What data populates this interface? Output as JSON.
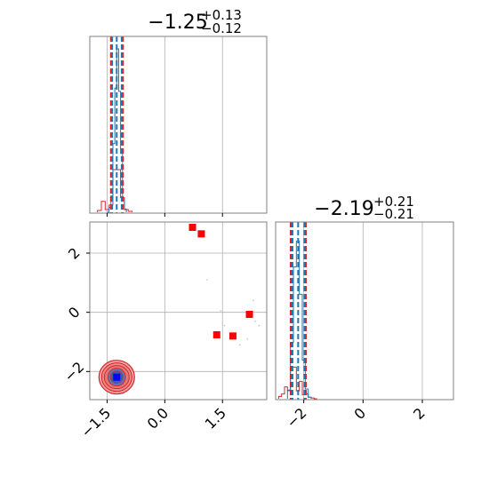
{
  "chart_data": {
    "type": "corner",
    "colors": {
      "blue": "#1f77b4",
      "red": "#d62728",
      "marker_red": "#ff0000",
      "marker_blue": "#0000ff",
      "grid": "#b0b0b0",
      "frame": "#808080"
    },
    "grid": true,
    "parameters": [
      {
        "title": {
          "value": "−1.25",
          "plus": "+0.13",
          "minus": "−0.12"
        },
        "ticks": [
          {
            "value": -1.5,
            "label": "−1.5"
          },
          {
            "value": 0.0,
            "label": "0.0"
          },
          {
            "value": 1.5,
            "label": "1.5"
          }
        ],
        "range": [
          -1.95,
          2.65
        ],
        "median": -1.25,
        "quantiles_blue": [
          -1.37,
          -1.12
        ],
        "quantiles_red": [
          -1.4,
          -1.09
        ],
        "hist_blue": {
          "edges": [
            -1.5,
            -1.45,
            -1.4,
            -1.35,
            -1.3,
            -1.25,
            -1.2,
            -1.15,
            -1.1,
            -1.05,
            -1.0
          ],
          "counts": [
            0,
            0.03,
            0.1,
            0.42,
            0.76,
            1.0,
            0.74,
            0.36,
            0.08,
            0.02
          ]
        },
        "hist_red": {
          "edges": [
            -1.75,
            -1.65,
            -1.55,
            -1.45,
            -1.35,
            -1.25,
            -1.15,
            -1.05,
            -0.95,
            -0.85
          ],
          "counts": [
            0.02,
            0.12,
            0.03,
            0.08,
            0.47,
            0.47,
            0.16,
            0.03,
            0.01
          ]
        }
      },
      {
        "title": {
          "value": "−2.19",
          "plus": "+0.21",
          "minus": "−0.21"
        },
        "ticks": [
          {
            "value": -2,
            "label": "−2"
          },
          {
            "value": 0,
            "label": "0"
          },
          {
            "value": 2,
            "label": "2"
          }
        ],
        "range": [
          -2.95,
          3.05
        ],
        "median": -2.19,
        "quantiles_blue": [
          -2.38,
          -1.98
        ],
        "quantiles_red": [
          -2.44,
          -1.93
        ],
        "hist_blue": {
          "edges": [
            -2.55,
            -2.45,
            -2.35,
            -2.25,
            -2.15,
            -2.05,
            -1.95,
            -1.85,
            -1.75
          ],
          "counts": [
            0.05,
            0.35,
            0.82,
            0.98,
            0.65,
            0.24,
            0.06,
            0.01
          ]
        },
        "hist_red": {
          "edges": [
            -2.85,
            -2.75,
            -2.65,
            -2.55,
            -2.45,
            -2.35,
            -2.25,
            -2.15,
            -2.05,
            -1.95,
            -1.85,
            -1.75,
            -1.65,
            -1.55
          ],
          "counts": [
            0.03,
            0.06,
            0.15,
            0.11,
            0.4,
            0.4,
            0.1,
            0.22,
            0.05,
            0.06,
            0.02,
            0.01,
            0.0
          ]
        }
      }
    ],
    "scatter_red": [
      {
        "x": 0.72,
        "y": 2.87
      },
      {
        "x": 0.95,
        "y": 2.65
      },
      {
        "x": 1.35,
        "y": -0.76
      },
      {
        "x": 1.77,
        "y": -0.8
      },
      {
        "x": 2.2,
        "y": -0.07
      }
    ],
    "scatter_blue": [
      {
        "x": -1.25,
        "y": -2.19
      }
    ],
    "faint_points": [
      {
        "x": 1.1,
        "y": 1.1
      },
      {
        "x": 1.45,
        "y": 0.05
      },
      {
        "x": 1.55,
        "y": -0.45
      },
      {
        "x": 2.3,
        "y": 0.4
      },
      {
        "x": 2.35,
        "y": -0.3
      },
      {
        "x": 2.45,
        "y": -0.45
      },
      {
        "x": 2.15,
        "y": -0.9
      },
      {
        "x": 1.95,
        "y": -1.1
      }
    ]
  }
}
